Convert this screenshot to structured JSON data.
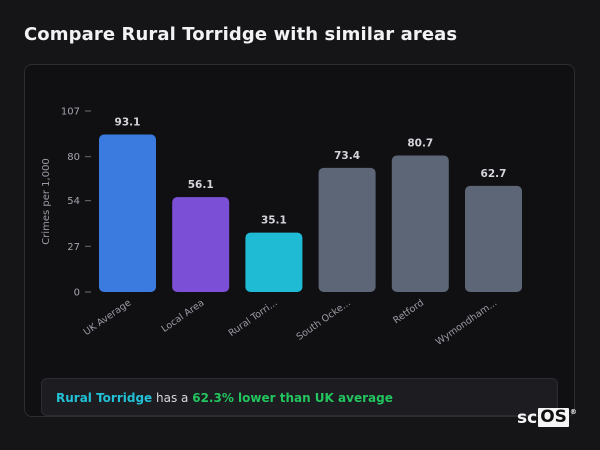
{
  "page": {
    "title": "Compare Rural Torridge with similar areas"
  },
  "chart_data": {
    "type": "bar",
    "title": "",
    "xlabel": "",
    "ylabel": "Crimes per 1,000",
    "ylim": [
      0,
      107
    ],
    "yticks": [
      0,
      27,
      54,
      80,
      107
    ],
    "grid": false,
    "categories": [
      "UK Average",
      "Local Area",
      "Rural Torridge",
      "South Ocke...",
      "Retford",
      "Wymondham..."
    ],
    "tick_labels": [
      "UK Average",
      "Local Area",
      "Rural Torri...",
      "South Ocke...",
      "Retford",
      "Wymondham..."
    ],
    "values": [
      93.1,
      56.1,
      35.1,
      73.4,
      80.7,
      62.7
    ],
    "value_labels": [
      "93.1",
      "56.1",
      "35.1",
      "73.4",
      "80.7",
      "62.7"
    ],
    "bar_colors": [
      "#3b7be0",
      "#7b50d6",
      "#1fbad3",
      "#5c6677",
      "#5c6677",
      "#5c6677"
    ]
  },
  "summary": {
    "area": "Rural Torridge",
    "middle": " has a ",
    "comparison": "62.3% lower than UK average"
  },
  "brand": {
    "prefix": "sc",
    "box": "OS",
    "mark": "®"
  },
  "colors": {
    "background": "#151518",
    "card": "#101013",
    "accent_teal": "#22c1d6",
    "accent_green": "#22c55e"
  }
}
